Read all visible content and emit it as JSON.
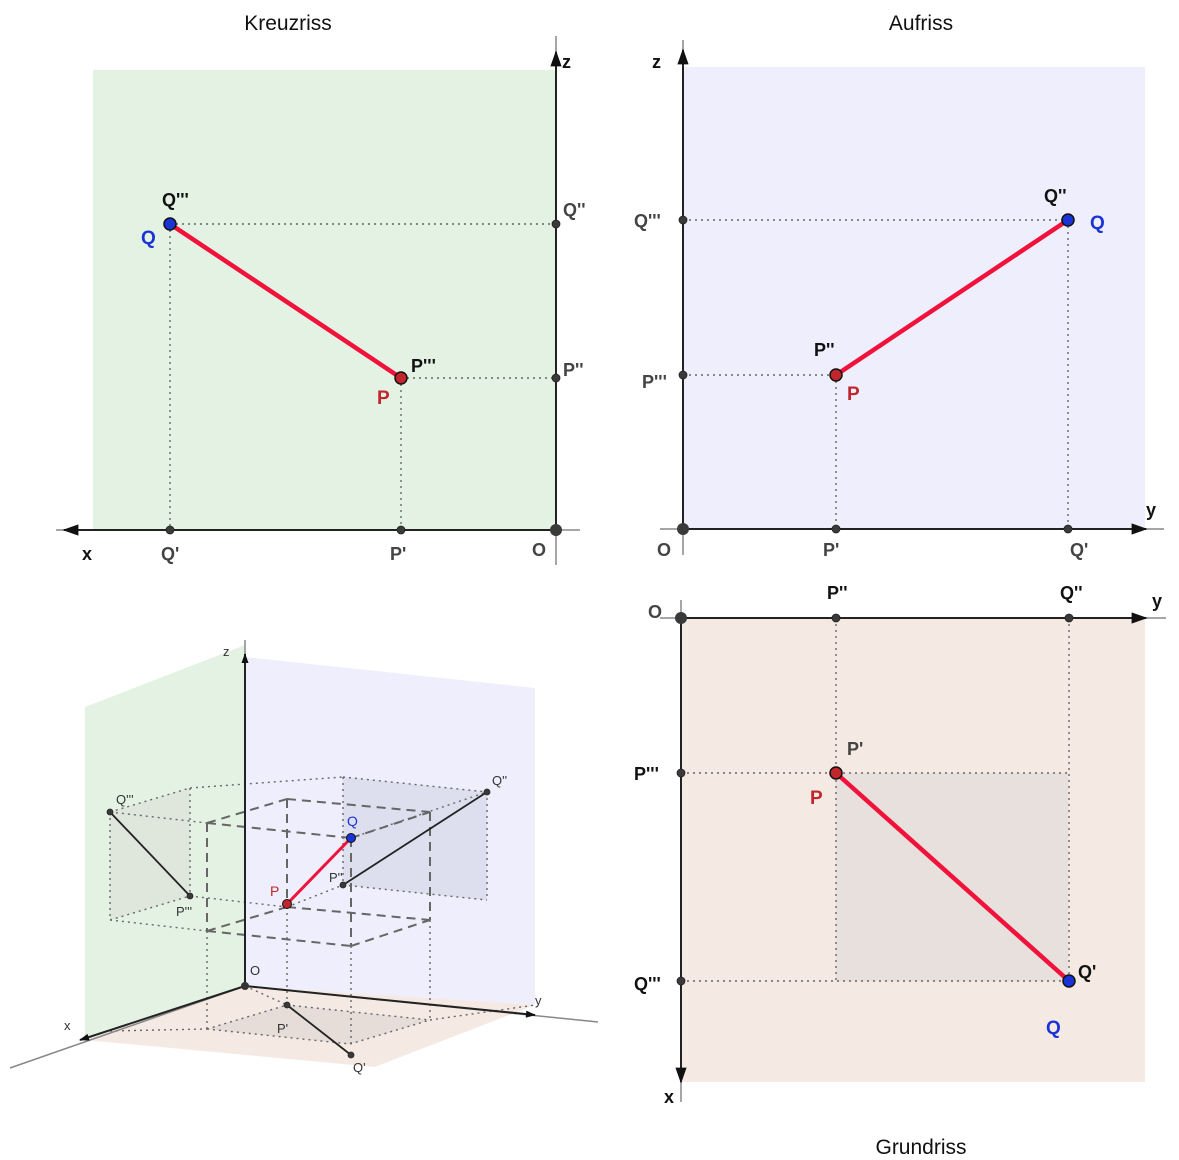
{
  "views": {
    "kreuzriss": {
      "title": "Kreuzriss",
      "axes": {
        "horizontal": "x",
        "vertical": "z",
        "origin": "O"
      },
      "points": {
        "Q": "Q",
        "P": "P",
        "Q3": "Q'''",
        "P3": "P'''",
        "Q2": "Q''",
        "P2": "P''",
        "Q1": "Q'",
        "P1": "P'"
      }
    },
    "aufriss": {
      "title": "Aufriss",
      "axes": {
        "horizontal": "y",
        "vertical": "z",
        "origin": "O"
      },
      "points": {
        "Q": "Q",
        "P": "P",
        "Q2": "Q''",
        "P2": "P''",
        "Q3": "Q'''",
        "P3": "P'''",
        "Q1": "Q'",
        "P1": "P'"
      }
    },
    "grundriss": {
      "title": "Grundriss",
      "axes": {
        "horizontal": "y",
        "vertical": "x",
        "origin": "O"
      },
      "points": {
        "Q": "Q",
        "P": "P",
        "Q1": "Q'",
        "P1": "P'",
        "Q2": "Q''",
        "P2": "P''",
        "Q3": "Q'''",
        "P3": "P'''"
      }
    },
    "perspective": {
      "axes": {
        "x": "x",
        "y": "y",
        "z": "z",
        "origin": "O"
      },
      "points": {
        "Q": "Q",
        "P": "P",
        "Q1": "Q'",
        "P1": "P'",
        "Q2": "Q''",
        "P2": "P''",
        "Q3": "Q'''",
        "P3": "P'''"
      }
    }
  },
  "colors": {
    "kreuzriss_plane": "#e3f2e3",
    "aufriss_plane": "#eeeefc",
    "grundriss_plane": "#f5e9e4",
    "segment": "#f0123a",
    "point_P": "#c0262c",
    "point_Q": "#1a33d6"
  }
}
